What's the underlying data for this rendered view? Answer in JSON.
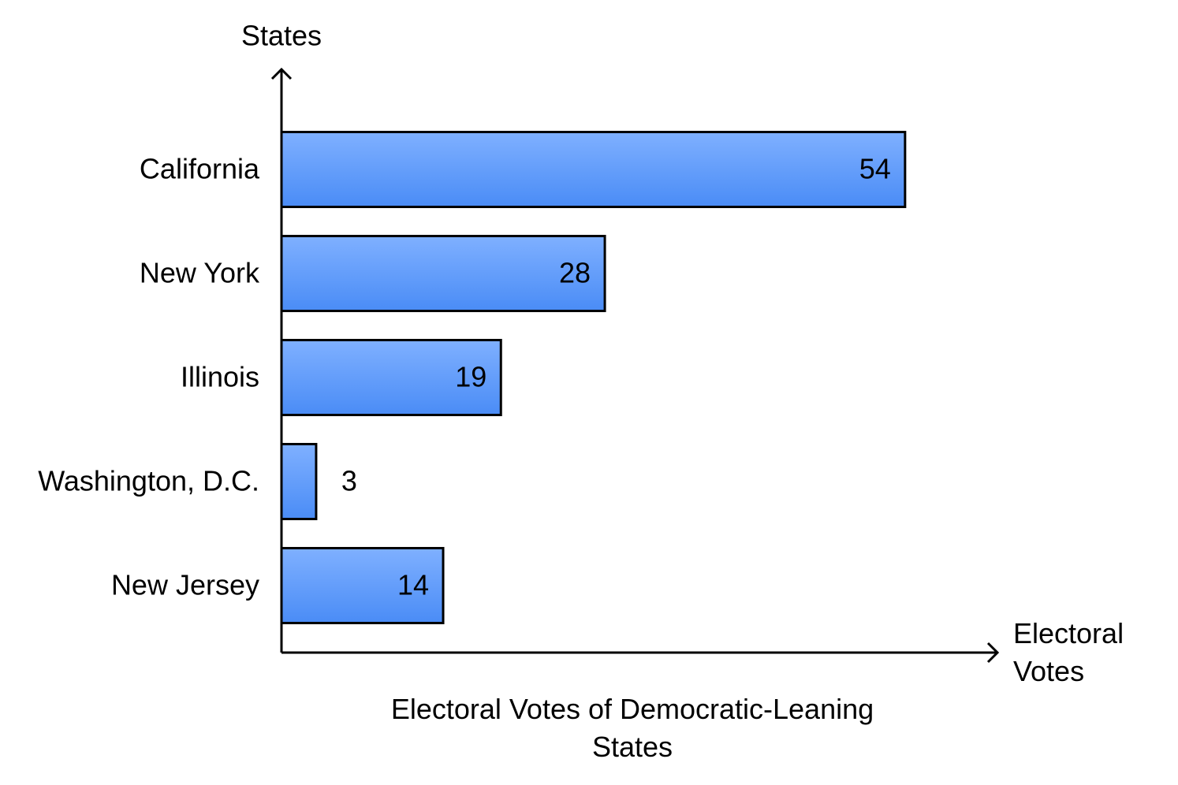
{
  "chart_data": {
    "type": "bar",
    "orientation": "horizontal",
    "title": "Electoral Votes of Democratic-Leaning States",
    "x_label": "Electoral Votes",
    "y_label": "States",
    "categories": [
      "California",
      "New York",
      "Illinois",
      "Washington, D.C.",
      "New Jersey"
    ],
    "values": [
      54,
      28,
      19,
      3,
      14
    ],
    "color": "#5b9bff",
    "xlim": [
      0,
      62
    ]
  }
}
